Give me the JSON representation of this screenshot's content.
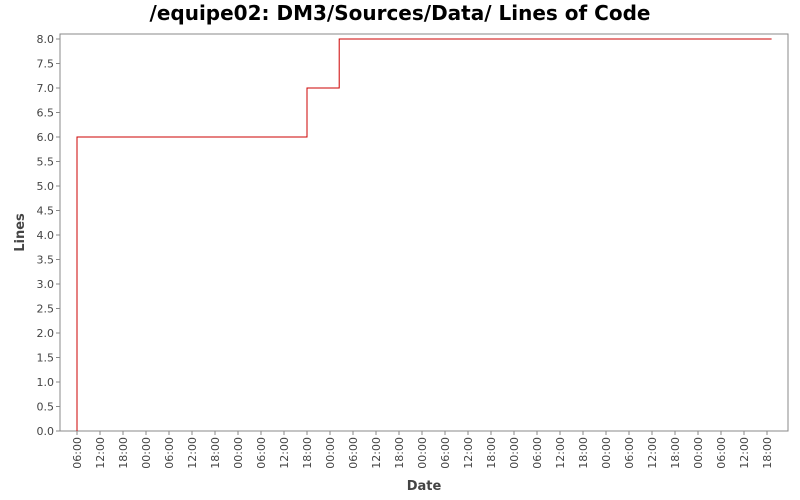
{
  "chart_data": {
    "type": "line",
    "title": "/equipe02: DM3/Sources/Data/ Lines of Code",
    "xlabel": "Date",
    "ylabel": "Lines",
    "ylim": [
      0,
      8.0
    ],
    "yticks": [
      "0.0",
      "0.5",
      "1.0",
      "1.5",
      "2.0",
      "2.5",
      "3.0",
      "3.5",
      "4.0",
      "4.5",
      "5.0",
      "5.5",
      "6.0",
      "6.5",
      "7.0",
      "7.5",
      "8.0"
    ],
    "xticks": [
      "06:00",
      "12:00",
      "18:00",
      "00:00",
      "06:00",
      "12:00",
      "18:00",
      "00:00",
      "06:00",
      "12:00",
      "18:00",
      "00:00",
      "06:00",
      "12:00",
      "18:00",
      "00:00",
      "06:00",
      "12:00",
      "18:00",
      "00:00",
      "06:00",
      "12:00",
      "18:00",
      "00:00",
      "06:00",
      "12:00",
      "18:00",
      "00:00",
      "06:00",
      "12:00",
      "18:00"
    ],
    "step": true,
    "series": [
      {
        "color": "#cc0000",
        "points": [
          {
            "x": 0.0,
            "y": 0
          },
          {
            "x": 0.0,
            "y": 6
          },
          {
            "x": 10.0,
            "y": 6
          },
          {
            "x": 10.0,
            "y": 7
          },
          {
            "x": 11.4,
            "y": 7
          },
          {
            "x": 11.4,
            "y": 8
          },
          {
            "x": 30.2,
            "y": 8
          }
        ]
      }
    ],
    "grid": false
  }
}
